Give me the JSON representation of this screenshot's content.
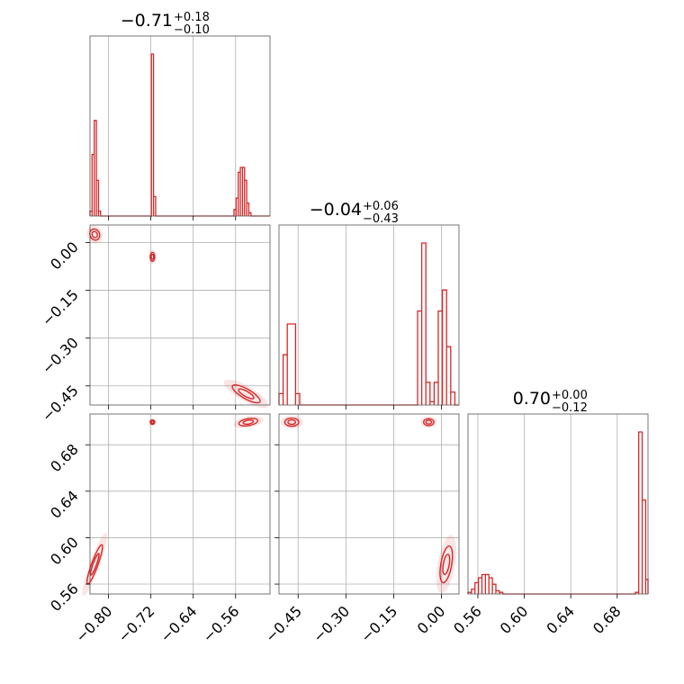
{
  "chart_data": {
    "type": "corner",
    "color": "#d62728",
    "grid": true,
    "params": [
      {
        "title_main": "−0.71",
        "title_sup": "+0.18",
        "title_sub": "−0.10",
        "range": [
          -0.835,
          -0.495
        ],
        "ticks": [
          -0.8,
          -0.72,
          -0.64,
          -0.56
        ],
        "tick_labels": [
          "−0.80",
          "−0.72",
          "−0.64",
          "−0.56"
        ]
      },
      {
        "title_main": "−0.04",
        "title_sup": "+0.06",
        "title_sub": "−0.43",
        "range": [
          -0.51,
          0.055
        ],
        "ticks": [
          -0.45,
          -0.3,
          -0.15,
          0.0
        ],
        "tick_labels": [
          "−0.45",
          "−0.30",
          "−0.15",
          "0.00"
        ]
      },
      {
        "title_main": "0.70",
        "title_sup": "+0.00",
        "title_sub": "−0.12",
        "range": [
          0.5515,
          0.7065
        ],
        "ticks": [
          0.56,
          0.6,
          0.64,
          0.68
        ],
        "tick_labels": [
          "0.56",
          "0.60",
          "0.64",
          "0.68"
        ]
      }
    ],
    "histograms": [
      [
        {
          "x0": -0.835,
          "x1": -0.831,
          "h": 0.03
        },
        {
          "x0": -0.831,
          "x1": -0.827,
          "h": 0.38
        },
        {
          "x0": -0.827,
          "x1": -0.823,
          "h": 0.59
        },
        {
          "x0": -0.823,
          "x1": -0.819,
          "h": 0.22
        },
        {
          "x0": -0.819,
          "x1": -0.815,
          "h": 0.03
        },
        {
          "x0": -0.719,
          "x1": -0.715,
          "h": 1.0
        },
        {
          "x0": -0.715,
          "x1": -0.711,
          "h": 0.12
        },
        {
          "x0": -0.563,
          "x1": -0.559,
          "h": 0.04
        },
        {
          "x0": -0.559,
          "x1": -0.555,
          "h": 0.11
        },
        {
          "x0": -0.555,
          "x1": -0.551,
          "h": 0.27
        },
        {
          "x0": -0.551,
          "x1": -0.547,
          "h": 0.3
        },
        {
          "x0": -0.547,
          "x1": -0.543,
          "h": 0.3
        },
        {
          "x0": -0.543,
          "x1": -0.539,
          "h": 0.22
        },
        {
          "x0": -0.539,
          "x1": -0.535,
          "h": 0.08
        },
        {
          "x0": -0.535,
          "x1": -0.531,
          "h": 0.02
        }
      ],
      [
        {
          "x0": -0.51,
          "x1": -0.497,
          "h": 0.07
        },
        {
          "x0": -0.497,
          "x1": -0.484,
          "h": 0.31
        },
        {
          "x0": -0.484,
          "x1": -0.458,
          "h": 0.5
        },
        {
          "x0": -0.458,
          "x1": -0.445,
          "h": 0.07
        },
        {
          "x0": -0.075,
          "x1": -0.062,
          "h": 0.58
        },
        {
          "x0": -0.062,
          "x1": -0.049,
          "h": 1.0
        },
        {
          "x0": -0.049,
          "x1": -0.036,
          "h": 0.14
        },
        {
          "x0": -0.036,
          "x1": -0.023,
          "h": 0.02
        },
        {
          "x0": -0.023,
          "x1": -0.01,
          "h": 0.14
        },
        {
          "x0": -0.01,
          "x1": 0.003,
          "h": 0.58
        },
        {
          "x0": 0.003,
          "x1": 0.016,
          "h": 0.71
        },
        {
          "x0": 0.016,
          "x1": 0.029,
          "h": 0.36
        },
        {
          "x0": 0.029,
          "x1": 0.042,
          "h": 0.08
        }
      ],
      [
        {
          "x0": 0.5515,
          "x1": 0.5545,
          "h": 0.01
        },
        {
          "x0": 0.5545,
          "x1": 0.5575,
          "h": 0.03
        },
        {
          "x0": 0.5575,
          "x1": 0.5605,
          "h": 0.07
        },
        {
          "x0": 0.5605,
          "x1": 0.5635,
          "h": 0.1
        },
        {
          "x0": 0.5635,
          "x1": 0.5665,
          "h": 0.12
        },
        {
          "x0": 0.5665,
          "x1": 0.5695,
          "h": 0.12
        },
        {
          "x0": 0.5695,
          "x1": 0.5725,
          "h": 0.1
        },
        {
          "x0": 0.5725,
          "x1": 0.5755,
          "h": 0.06
        },
        {
          "x0": 0.5755,
          "x1": 0.5785,
          "h": 0.02
        },
        {
          "x0": 0.5785,
          "x1": 0.5815,
          "h": 0.01
        },
        {
          "x0": 0.6955,
          "x1": 0.6985,
          "h": 0.01
        },
        {
          "x0": 0.6985,
          "x1": 0.7015,
          "h": 1.0
        },
        {
          "x0": 0.7015,
          "x1": 0.7045,
          "h": 0.58
        },
        {
          "x0": 0.7045,
          "x1": 0.7065,
          "h": 0.09
        }
      ]
    ],
    "contours": [
      {
        "px": 0,
        "py": 1,
        "blobs": [
          {
            "cx": -0.826,
            "cy": 0.025,
            "rx": 0.009,
            "ry": 0.018,
            "rot": -25
          },
          {
            "cx": -0.717,
            "cy": -0.045,
            "rx": 0.004,
            "ry": 0.014,
            "rot": 0
          },
          {
            "cx": -0.54,
            "cy": -0.475,
            "rx": 0.03,
            "ry": 0.015,
            "rot": 30
          }
        ]
      },
      {
        "px": 0,
        "py": 2,
        "blobs": [
          {
            "cx": -0.826,
            "cy": 0.577,
            "rx": 0.006,
            "ry": 0.018,
            "rot": 20
          },
          {
            "cx": -0.717,
            "cy": 0.6995,
            "rx": 0.004,
            "ry": 0.0018,
            "rot": 0
          },
          {
            "cx": -0.536,
            "cy": 0.6995,
            "rx": 0.018,
            "ry": 0.003,
            "rot": -10
          }
        ]
      },
      {
        "px": 1,
        "py": 2,
        "blobs": [
          {
            "cx": -0.47,
            "cy": 0.6995,
            "rx": 0.022,
            "ry": 0.0035,
            "rot": 0
          },
          {
            "cx": -0.04,
            "cy": 0.6995,
            "rx": 0.016,
            "ry": 0.003,
            "rot": 0
          },
          {
            "cx": 0.015,
            "cy": 0.577,
            "rx": 0.017,
            "ry": 0.016,
            "rot": 10
          }
        ]
      }
    ]
  }
}
